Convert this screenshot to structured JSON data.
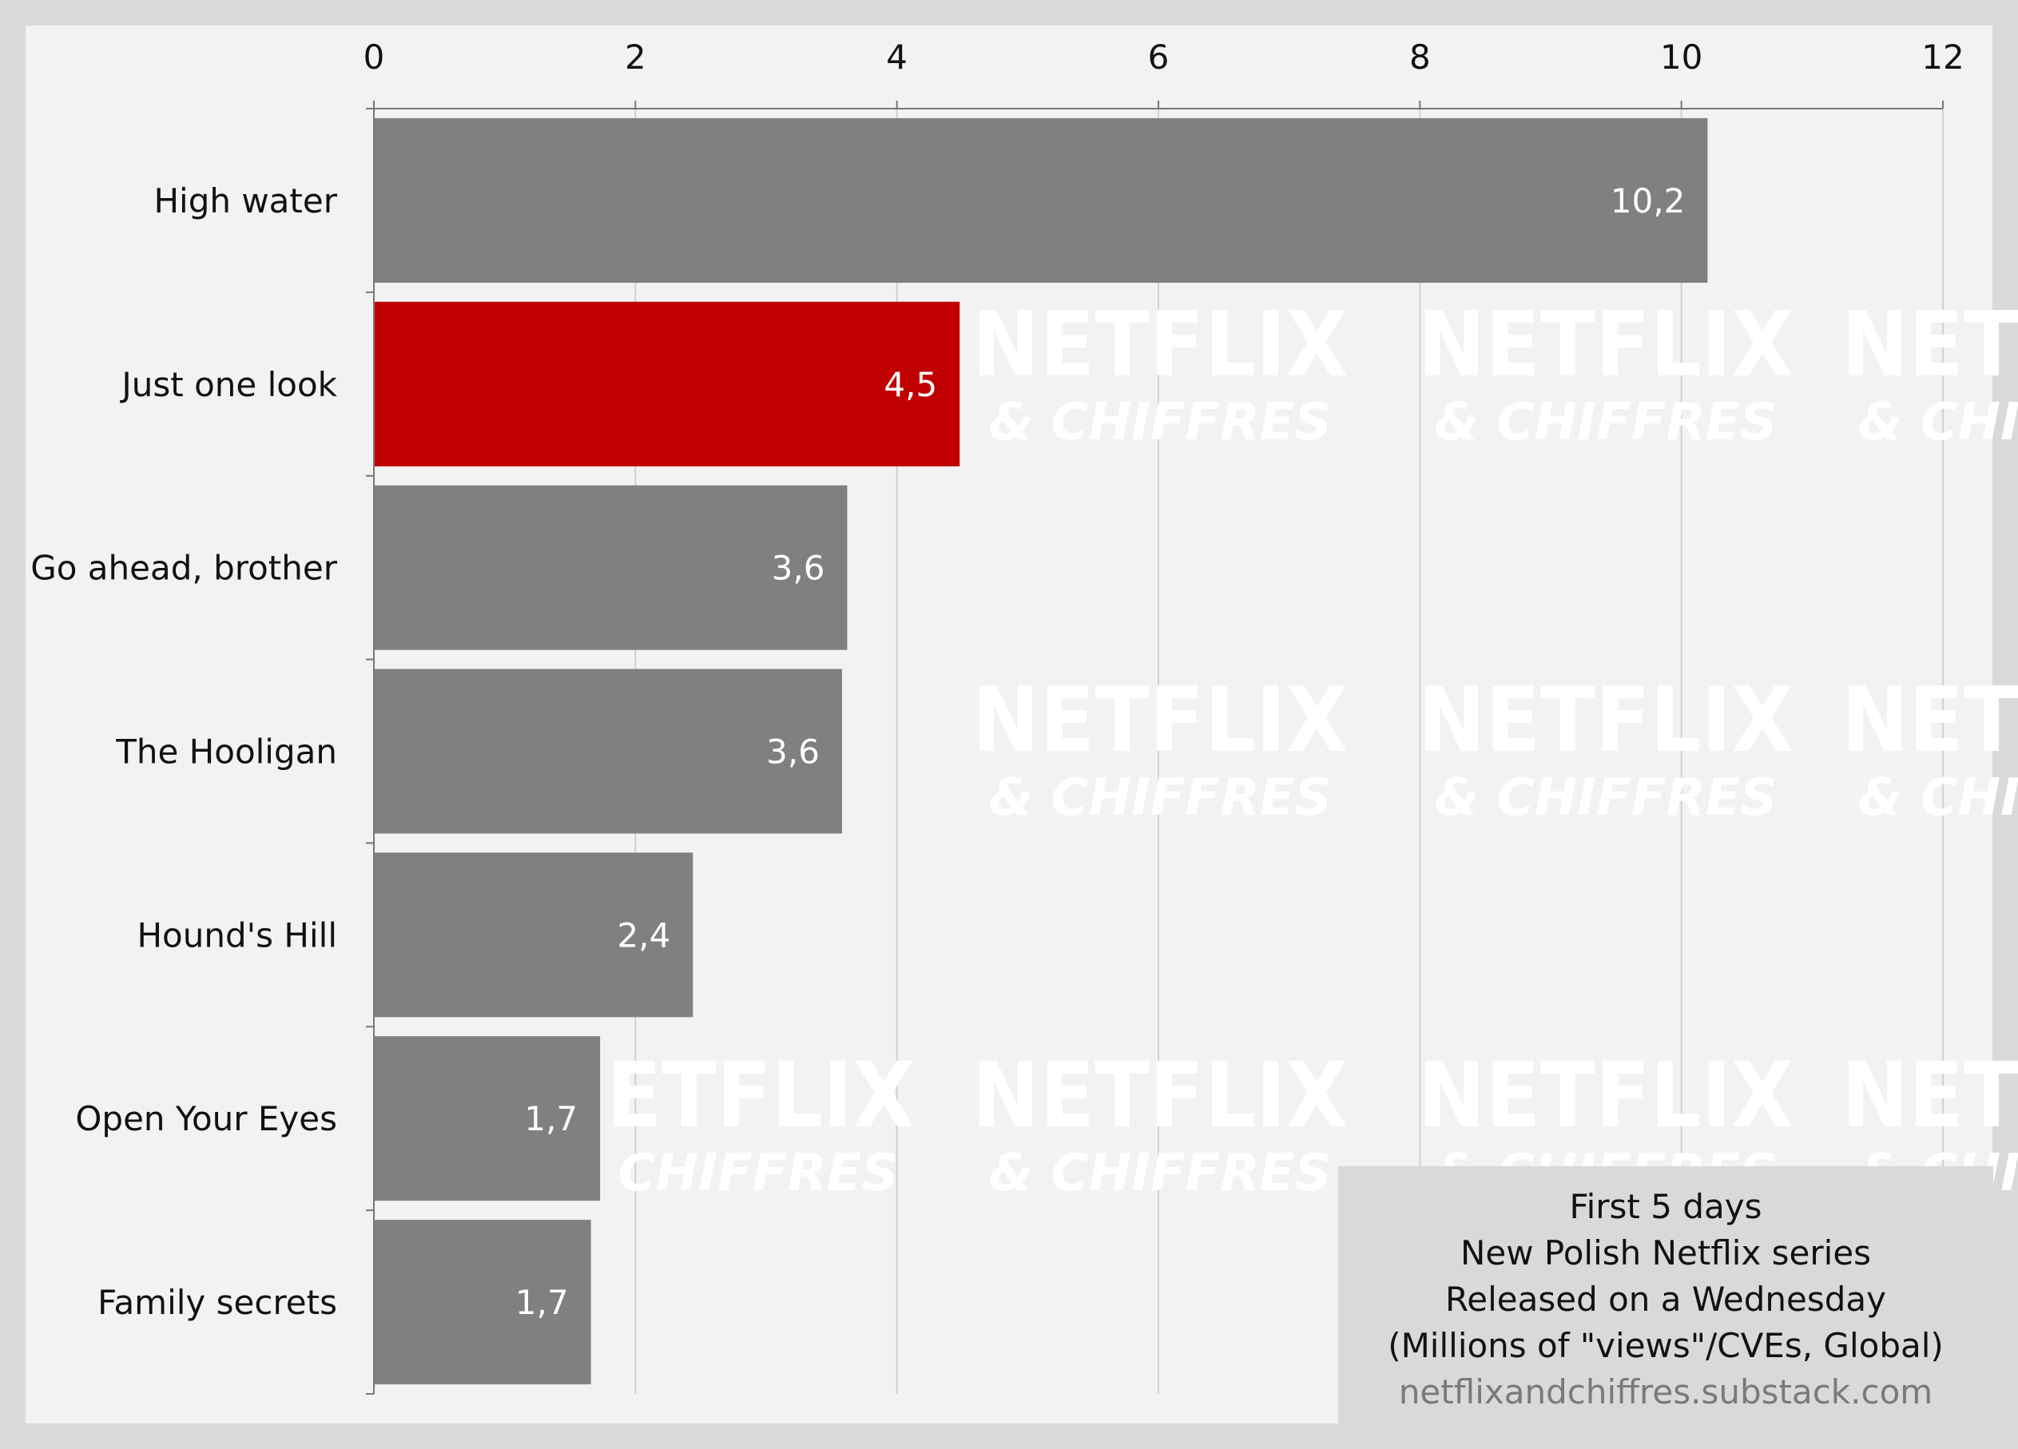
{
  "chart_data": {
    "type": "bar",
    "orientation": "horizontal",
    "categories": [
      "High water",
      "Just one look",
      "Go ahead, brother",
      "The Hooligan",
      "Hound's Hill",
      "Open Your Eyes",
      "Family secrets"
    ],
    "values": [
      10.2,
      4.48,
      3.62,
      3.58,
      2.44,
      1.73,
      1.66
    ],
    "value_labels": [
      "10,2",
      "4,5",
      "3,6",
      "3,6",
      "2,4",
      "1,7",
      "1,7"
    ],
    "highlight_index": 1,
    "colors": {
      "default": "#808080",
      "highlight": "#c00000"
    },
    "xlim": [
      0,
      12
    ],
    "x_ticks": [
      0,
      2,
      4,
      6,
      8,
      10,
      12
    ],
    "x_tick_labels": [
      "0",
      "2",
      "4",
      "6",
      "8",
      "10",
      "12"
    ],
    "x_axis_position": "top",
    "grid": true,
    "title": "",
    "xlabel": "",
    "ylabel": ""
  },
  "info_box": {
    "line1": "First 5 days",
    "line2": "New Polish Netflix series",
    "line3": "Released on a Wednesday",
    "line4": "(Millions of \"views\"/CVEs, Global)",
    "source": "netflixandchiffres.substack.com"
  },
  "watermark": {
    "brand": "NETFLIX",
    "sub": "& CHIFFRES"
  }
}
